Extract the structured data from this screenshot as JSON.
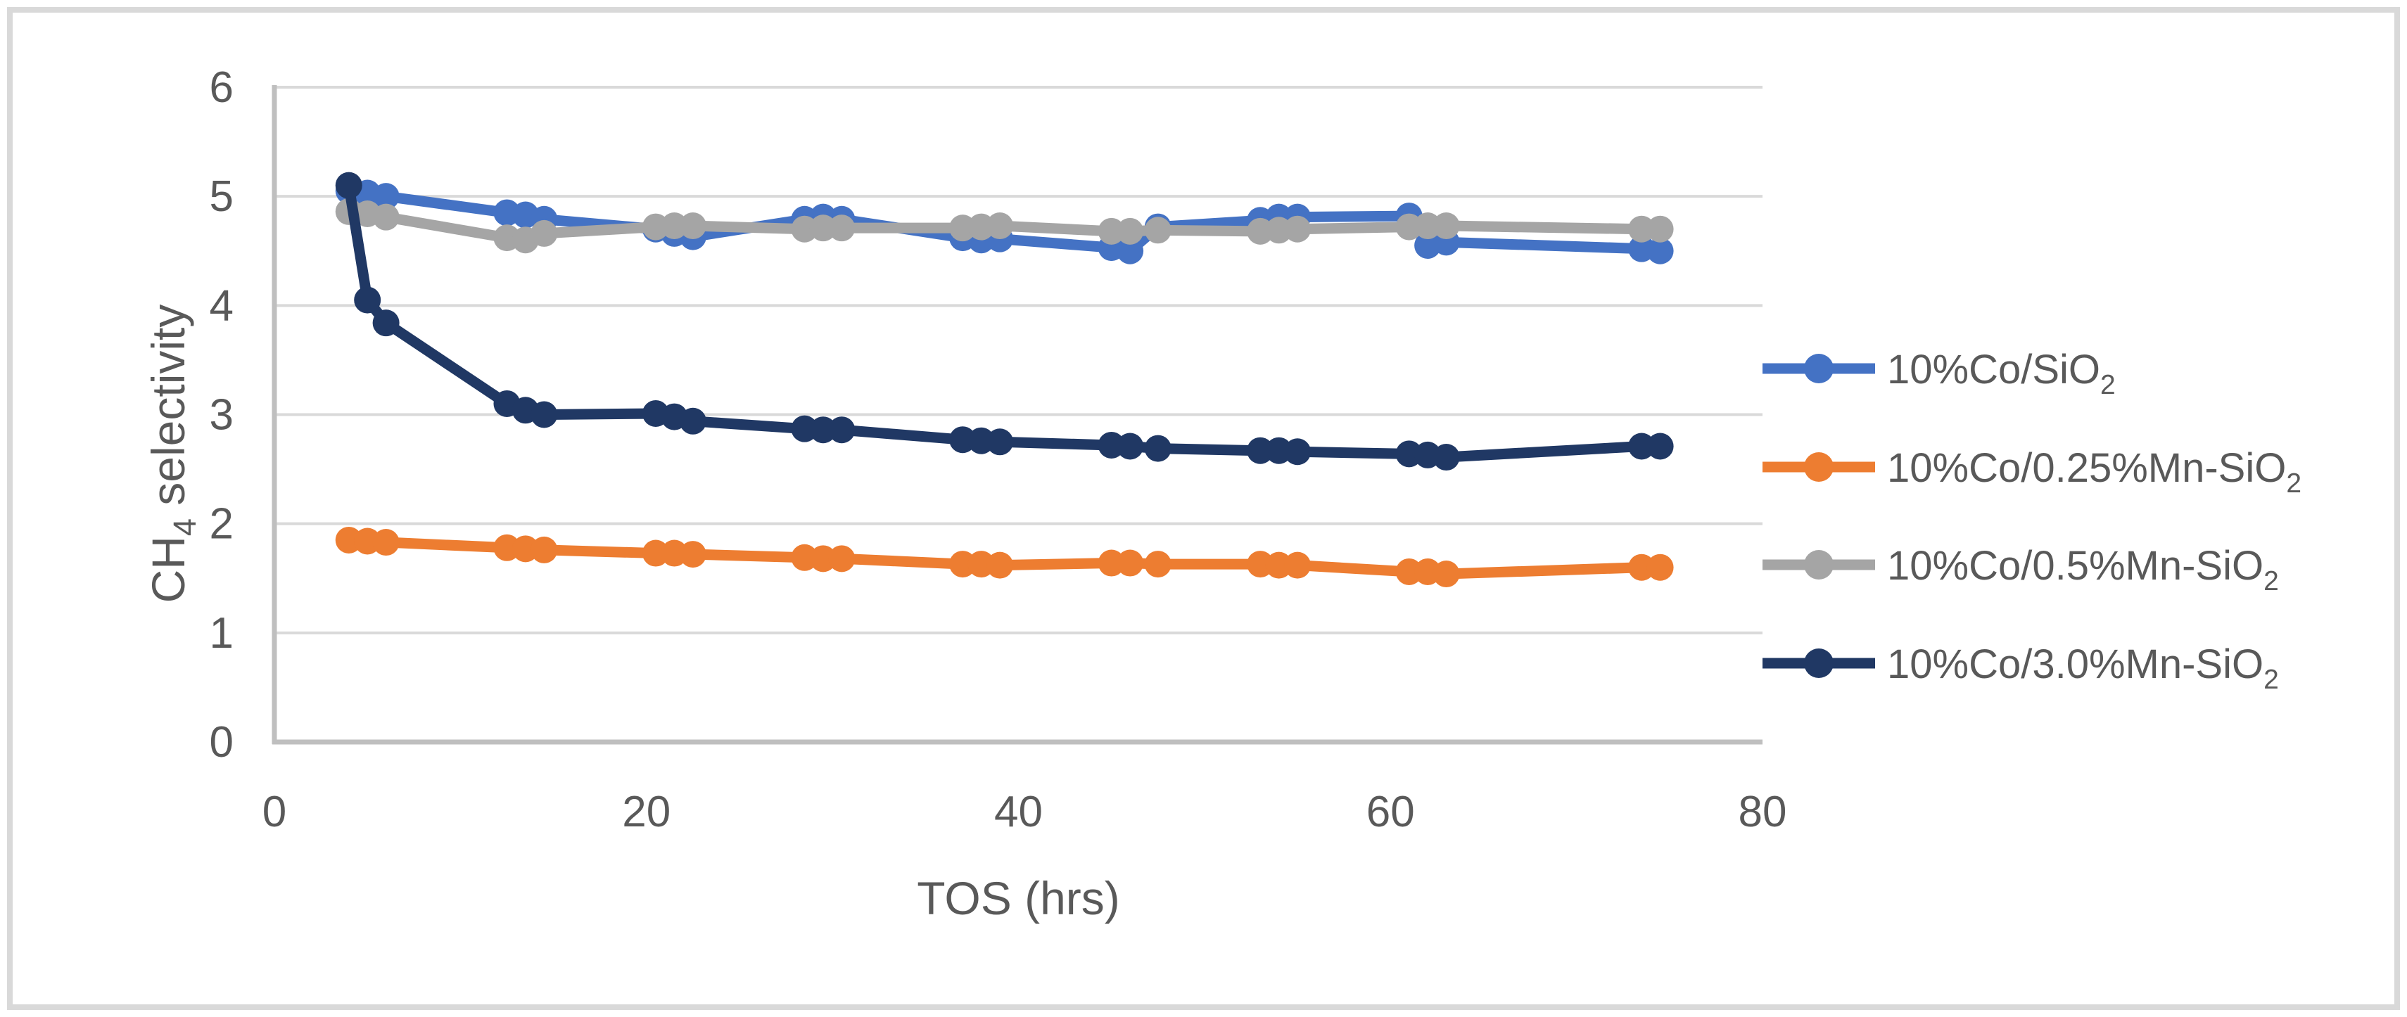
{
  "figure": {
    "background": "#ffffff",
    "border_color": "#d9d9d9",
    "text_color": "#595959",
    "gridline_color": "#d9d9d9",
    "axis_line_color": "#bfbfbf"
  },
  "chart_data": {
    "type": "line",
    "title": "",
    "xlabel": "TOS (hrs)",
    "ylabel": "CH4 selectivity",
    "ylabel_parts": {
      "base": "CH",
      "sub": "4",
      "rest": " selectivity"
    },
    "xlim": [
      0,
      80
    ],
    "ylim": [
      0,
      6
    ],
    "x_ticks": [
      0,
      20,
      40,
      60,
      80
    ],
    "y_ticks": [
      0,
      1,
      2,
      3,
      4,
      5,
      6
    ],
    "grid": "horizontal",
    "legend_position": "right",
    "x": [
      4,
      5,
      6,
      12.5,
      13.5,
      14.5,
      20.5,
      21.5,
      22.5,
      28.5,
      29.5,
      30.5,
      37,
      38,
      39,
      45,
      46,
      47.5,
      53,
      54,
      55,
      61,
      62,
      63,
      73.5,
      74.5
    ],
    "series": [
      {
        "name_base": "10%Co/SiO",
        "name_sub": "2",
        "color": "#4472c4",
        "values": [
          5.05,
          5.03,
          5.0,
          4.85,
          4.83,
          4.79,
          4.7,
          4.66,
          4.63,
          4.79,
          4.81,
          4.79,
          4.62,
          4.6,
          4.61,
          4.53,
          4.5,
          4.72,
          4.78,
          4.81,
          4.81,
          4.82,
          4.55,
          4.58,
          4.52,
          4.5
        ]
      },
      {
        "name_base": "10%Co/0.25%Mn-SiO",
        "name_sub": "2",
        "color": "#ed7d31",
        "values": [
          1.85,
          1.84,
          1.83,
          1.78,
          1.77,
          1.76,
          1.73,
          1.73,
          1.72,
          1.69,
          1.68,
          1.68,
          1.63,
          1.63,
          1.62,
          1.64,
          1.64,
          1.63,
          1.63,
          1.62,
          1.62,
          1.56,
          1.56,
          1.54,
          1.6,
          1.6
        ]
      },
      {
        "name_base": "10%Co/0.5%Mn-SiO",
        "name_sub": "2",
        "color": "#a5a5a5",
        "values": [
          4.86,
          4.84,
          4.81,
          4.62,
          4.6,
          4.66,
          4.72,
          4.73,
          4.73,
          4.7,
          4.71,
          4.71,
          4.71,
          4.72,
          4.73,
          4.68,
          4.68,
          4.69,
          4.68,
          4.69,
          4.7,
          4.72,
          4.73,
          4.73,
          4.7,
          4.7
        ]
      },
      {
        "name_base": "10%Co/3.0%Mn-SiO",
        "name_sub": "2",
        "color": "#203864",
        "values": [
          5.1,
          4.05,
          3.84,
          3.1,
          3.04,
          3.0,
          3.01,
          2.98,
          2.94,
          2.87,
          2.86,
          2.86,
          2.77,
          2.76,
          2.75,
          2.72,
          2.71,
          2.69,
          2.67,
          2.67,
          2.66,
          2.64,
          2.63,
          2.61,
          2.71,
          2.71
        ]
      }
    ]
  }
}
